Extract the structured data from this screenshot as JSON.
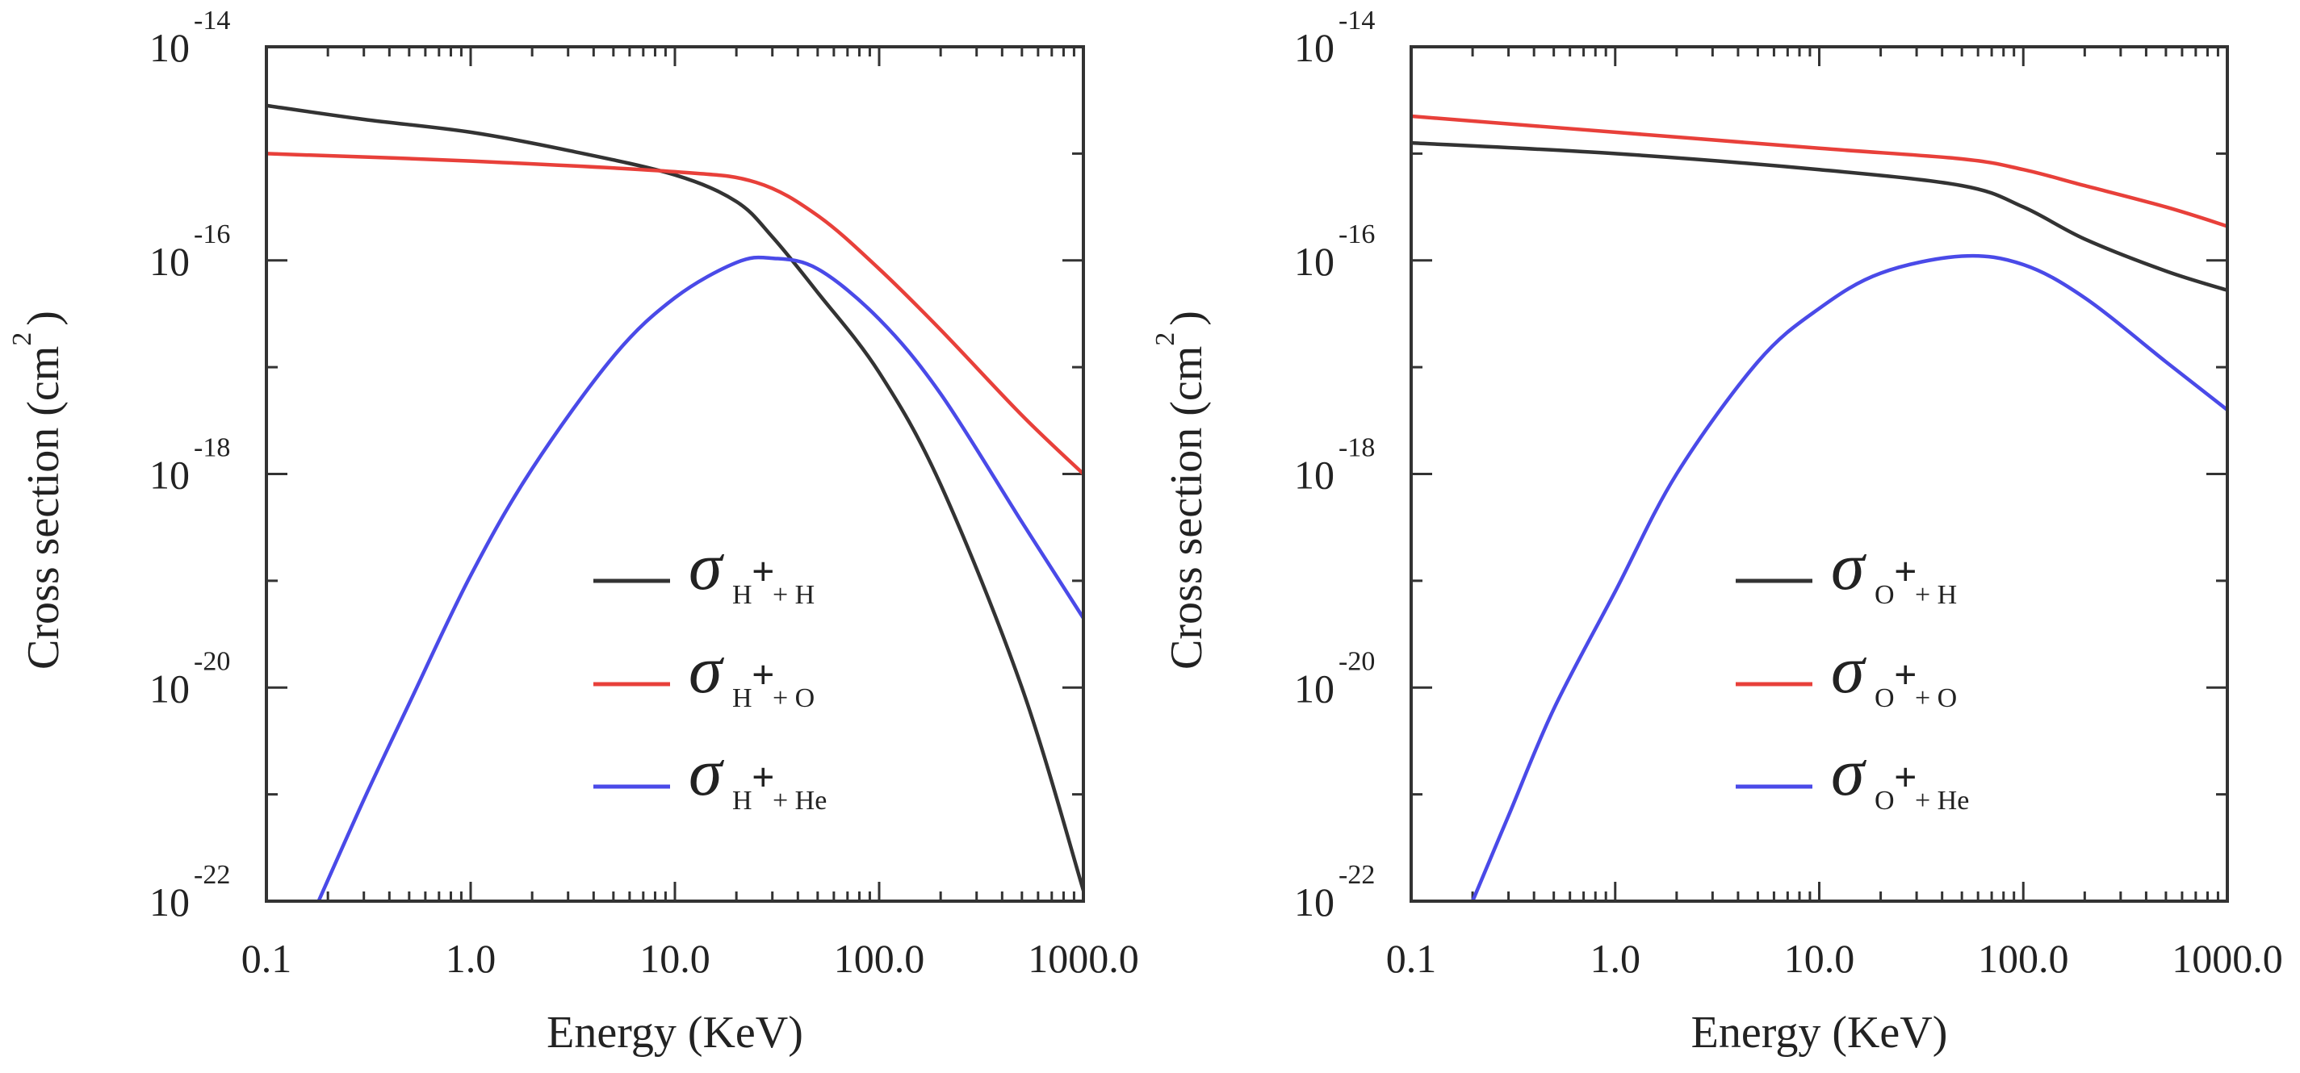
{
  "chart_data": [
    {
      "type": "line",
      "x_scale": "log",
      "y_scale": "log",
      "xlabel": "Energy (KeV)",
      "ylabel": "Cross section (cm",
      "ylabel_superscript": "2",
      "ylabel_close": ")",
      "xlim": [
        0.1,
        1000.0
      ],
      "ylim_exponent": [
        -22,
        -14
      ],
      "x_ticks": [
        "0.1",
        "1.0",
        "10.0",
        "100.0",
        "1000.0"
      ],
      "y_ticks": [
        {
          "base": "10",
          "exp": "-14",
          "value_exp": -14
        },
        {
          "base": "10",
          "exp": "-16",
          "value_exp": -16
        },
        {
          "base": "10",
          "exp": "-18",
          "value_exp": -18
        },
        {
          "base": "10",
          "exp": "-20",
          "value_exp": -20
        },
        {
          "base": "10",
          "exp": "-22",
          "value_exp": -22
        }
      ],
      "series": [
        {
          "name": "sigma_H+ + H",
          "symbol": "σ",
          "sub_ion": "H",
          "sub_plus": "+",
          "sub_target": "+ H",
          "color": "#333333",
          "x": [
            0.1,
            0.3,
            1,
            3,
            10,
            20,
            30,
            50,
            100,
            200,
            500,
            1000
          ],
          "y_exp": [
            -14.55,
            -14.68,
            -14.8,
            -14.97,
            -15.2,
            -15.45,
            -15.78,
            -16.3,
            -17.05,
            -18.1,
            -20.0,
            -21.9
          ]
        },
        {
          "name": "sigma_H+ + O",
          "symbol": "σ",
          "sub_ion": "H",
          "sub_plus": "+",
          "sub_target": "+ O",
          "color": "#e8403a",
          "x": [
            0.1,
            1,
            10,
            25,
            50,
            100,
            200,
            500,
            1000
          ],
          "y_exp": [
            -15.0,
            -15.07,
            -15.17,
            -15.27,
            -15.58,
            -16.08,
            -16.65,
            -17.45,
            -18.0
          ]
        },
        {
          "name": "sigma_H+ + He",
          "symbol": "σ",
          "sub_ion": "H",
          "sub_plus": "+",
          "sub_target": "+ He",
          "color": "#4a4ae8",
          "x": [
            0.18,
            0.3,
            0.5,
            1,
            2,
            5,
            10,
            20,
            30,
            50,
            100,
            200,
            500,
            1000
          ],
          "y_exp": [
            -22.0,
            -21.05,
            -20.15,
            -18.95,
            -17.95,
            -16.9,
            -16.35,
            -16.02,
            -15.98,
            -16.08,
            -16.55,
            -17.25,
            -18.45,
            -19.35
          ]
        }
      ]
    },
    {
      "type": "line",
      "x_scale": "log",
      "y_scale": "log",
      "xlabel": "Energy (KeV)",
      "ylabel": "Cross section (cm",
      "ylabel_superscript": "2",
      "ylabel_close": ")",
      "xlim": [
        0.1,
        1000.0
      ],
      "ylim_exponent": [
        -22,
        -14
      ],
      "x_ticks": [
        "0.1",
        "1.0",
        "10.0",
        "100.0",
        "1000.0"
      ],
      "y_ticks": [
        {
          "base": "10",
          "exp": "-14",
          "value_exp": -14
        },
        {
          "base": "10",
          "exp": "-16",
          "value_exp": -16
        },
        {
          "base": "10",
          "exp": "-18",
          "value_exp": -18
        },
        {
          "base": "10",
          "exp": "-20",
          "value_exp": -20
        },
        {
          "base": "10",
          "exp": "-22",
          "value_exp": -22
        }
      ],
      "series": [
        {
          "name": "sigma_O+ + H",
          "symbol": "σ",
          "sub_ion": "O",
          "sub_plus": "+",
          "sub_target": "+ H",
          "color": "#333333",
          "x": [
            0.1,
            1,
            10,
            50,
            100,
            200,
            500,
            1000
          ],
          "y_exp": [
            -14.9,
            -15.0,
            -15.15,
            -15.3,
            -15.5,
            -15.8,
            -16.1,
            -16.28
          ]
        },
        {
          "name": "sigma_O+ + O",
          "symbol": "σ",
          "sub_ion": "O",
          "sub_plus": "+",
          "sub_target": "+ O",
          "color": "#e8403a",
          "x": [
            0.1,
            1,
            10,
            50,
            100,
            200,
            500,
            1000
          ],
          "y_exp": [
            -14.65,
            -14.8,
            -14.95,
            -15.05,
            -15.15,
            -15.3,
            -15.5,
            -15.68
          ]
        },
        {
          "name": "sigma_O+ + He",
          "symbol": "σ",
          "sub_ion": "O",
          "sub_plus": "+",
          "sub_target": "+ He",
          "color": "#4a4ae8",
          "x": [
            0.2,
            0.3,
            0.5,
            1,
            2,
            5,
            10,
            20,
            50,
            100,
            200,
            500,
            1000
          ],
          "y_exp": [
            -22.0,
            -21.2,
            -20.2,
            -19.1,
            -18.0,
            -16.95,
            -16.45,
            -16.12,
            -15.96,
            -16.04,
            -16.35,
            -16.95,
            -17.4
          ]
        }
      ]
    }
  ]
}
